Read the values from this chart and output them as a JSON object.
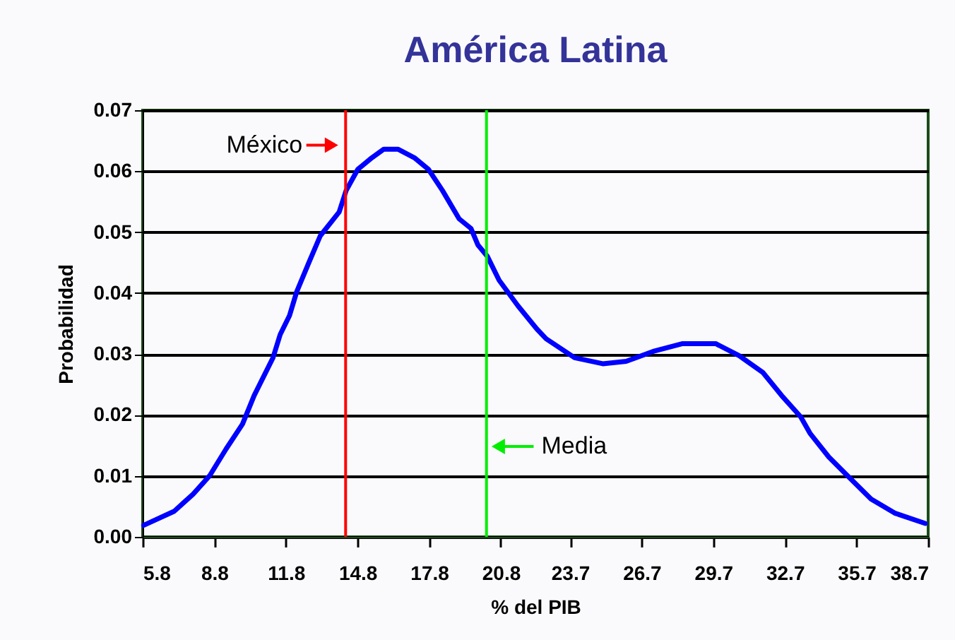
{
  "chart_data": {
    "type": "line",
    "title": "América Latina",
    "xlabel": "% del PIB",
    "ylabel": "Probabilidad",
    "xlim": [
      5.8,
      38.7
    ],
    "xticks": [
      5.8,
      8.8,
      11.8,
      14.8,
      17.8,
      20.8,
      23.7,
      26.7,
      29.7,
      32.7,
      35.7,
      38.7
    ],
    "ylim": [
      0,
      0.07
    ],
    "yticks": [
      {
        "value": 0,
        "label": "0.00"
      },
      0.01,
      0.02,
      0.03,
      0.04,
      0.05,
      0.06,
      0.07
    ],
    "grid": "y",
    "marker": "none",
    "line_style": "solid",
    "series": [
      {
        "color": "#0000ff",
        "x": [
          5.84,
          7.12,
          7.91,
          8.6,
          9.29,
          9.98,
          10.47,
          11.26,
          11.56,
          11.95,
          12.25,
          12.74,
          13.24,
          14.03,
          14.32,
          14.81,
          15.4,
          15.9,
          16.49,
          17.18,
          17.77,
          18.36,
          19.05,
          19.55,
          19.84,
          20.24,
          20.73,
          21.52,
          22.31,
          22.7,
          23.89,
          25.07,
          26.05,
          27.24,
          28.42,
          29.8,
          30.79,
          31.77,
          32.56,
          33.36,
          33.75,
          34.54,
          35.33,
          36.31,
          37.3,
          38.58
        ],
        "values": [
          0.0019,
          0.0042,
          0.007,
          0.01,
          0.0144,
          0.0185,
          0.0232,
          0.0294,
          0.0332,
          0.0363,
          0.0402,
          0.0448,
          0.0494,
          0.0533,
          0.0568,
          0.0603,
          0.0622,
          0.0636,
          0.0636,
          0.0622,
          0.0603,
          0.0568,
          0.0522,
          0.0506,
          0.0479,
          0.046,
          0.0421,
          0.0379,
          0.0341,
          0.0325,
          0.0294,
          0.0284,
          0.0288,
          0.0305,
          0.0317,
          0.0317,
          0.0297,
          0.027,
          0.0232,
          0.0197,
          0.017,
          0.0131,
          0.01,
          0.0062,
          0.0039,
          0.0022
        ]
      }
    ],
    "ref_lines": [
      {
        "axis": "x",
        "value": 14.3,
        "label": "México",
        "color": "#ff0000"
      },
      {
        "axis": "x",
        "value": 20.2,
        "label": "Media",
        "color": "#00ee00"
      }
    ]
  }
}
